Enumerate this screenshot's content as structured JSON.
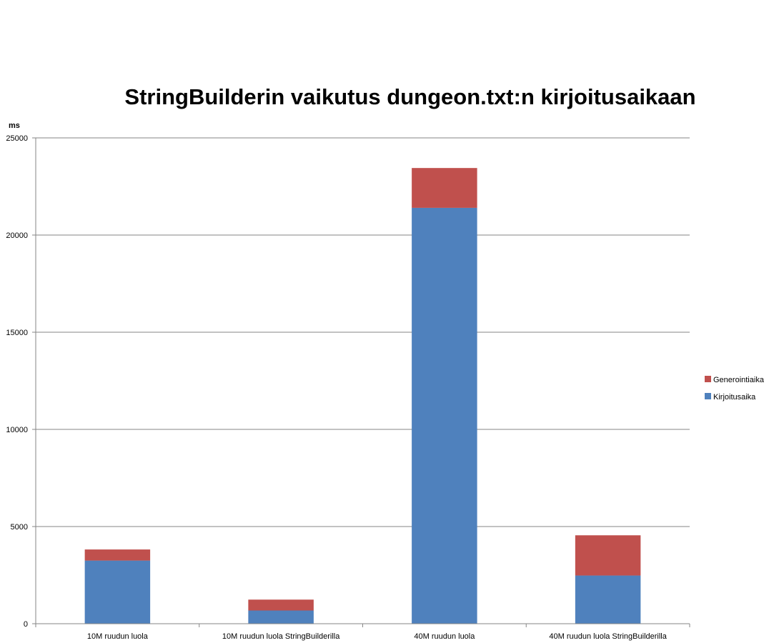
{
  "chart_data": {
    "type": "bar",
    "stacked": true,
    "title": "StringBuilderin vaikutus dungeon.txt:n kirjoitusaikaan",
    "ylabel": "ms",
    "xlabel": "",
    "ylim": [
      0,
      25000
    ],
    "yticks": [
      0,
      5000,
      10000,
      15000,
      20000,
      25000
    ],
    "grid": true,
    "legend_position": "right",
    "categories": [
      "10M ruudun luola",
      "10M ruudun luola StringBuilderilla",
      "40M ruudun luola",
      "40M ruudun luola StringBuilderilla"
    ],
    "series": [
      {
        "name": "Kirjoitusaika",
        "color": "#4f81bd",
        "values": [
          3250,
          680,
          21400,
          2480
        ]
      },
      {
        "name": "Generointiaika",
        "color": "#c0504d",
        "values": [
          570,
          560,
          2050,
          2070
        ]
      }
    ],
    "legend_order": [
      "Generointiaika",
      "Kirjoitusaika"
    ]
  }
}
